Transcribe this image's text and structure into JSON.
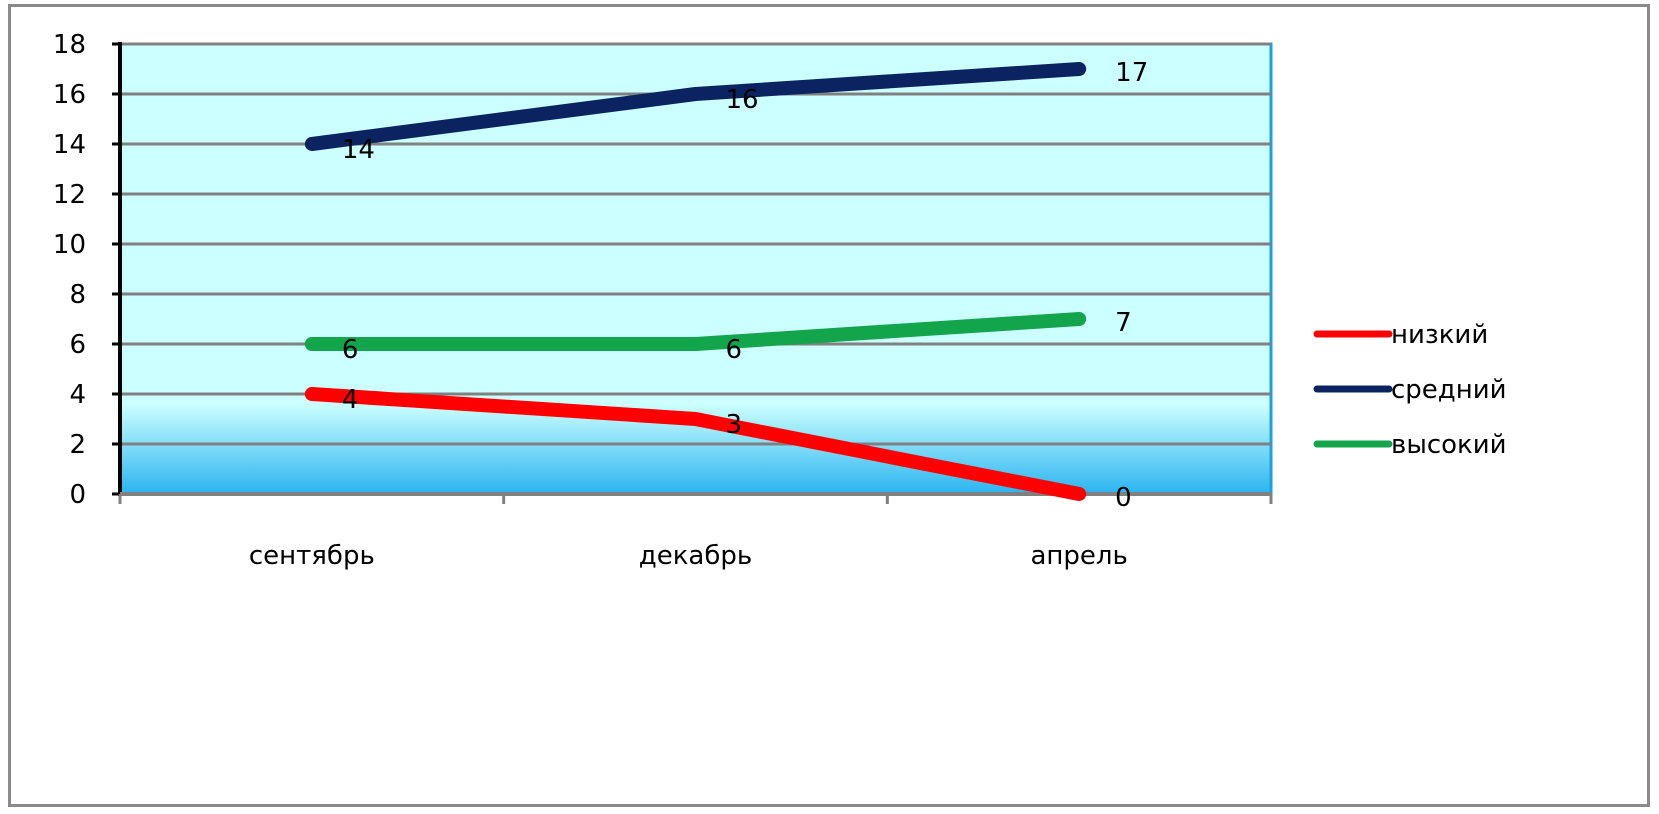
{
  "chart_data": {
    "type": "line",
    "categories": [
      "сентябрь",
      "декабрь",
      "апрель"
    ],
    "series": [
      {
        "name": "низкий",
        "values": [
          4,
          3,
          0
        ],
        "color": "#ff0000"
      },
      {
        "name": "средний",
        "values": [
          14,
          16,
          17
        ],
        "color": "#0b2461"
      },
      {
        "name": "высокий",
        "values": [
          6,
          6,
          7
        ],
        "color": "#12a54b"
      }
    ],
    "ylim": [
      0,
      18
    ],
    "yticks": [
      0,
      2,
      4,
      6,
      8,
      10,
      12,
      14,
      16,
      18
    ],
    "grid": true,
    "data_labels": true,
    "legend_position": "right",
    "colors": {
      "plot_background": "#ccffff",
      "plot_gradient_bottom": "#2bb4f0",
      "plot_border": "#1ba1e2",
      "gridline": "#808080",
      "axis": "#000000"
    }
  }
}
